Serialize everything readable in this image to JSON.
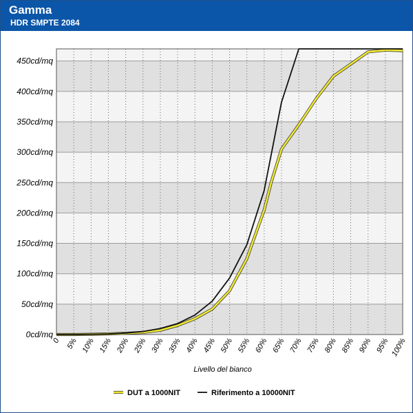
{
  "header": {
    "title": "Gamma",
    "subtitle": "HDR SMPTE 2084"
  },
  "colors": {
    "header_bg": "#0b56a8",
    "band_dark": "#e0e0e0",
    "band_light": "#f4f4f4",
    "dut": "#f0e830",
    "reference": "#111111"
  },
  "chart_data": {
    "type": "line",
    "title": "",
    "xlabel": "Livello del bianco",
    "ylabel": "",
    "x": [
      0,
      5,
      10,
      15,
      20,
      25,
      30,
      35,
      40,
      45,
      50,
      55,
      60,
      65,
      70,
      75,
      80,
      85,
      90,
      95,
      100
    ],
    "x_tick_labels": [
      "0",
      "5%",
      "10%",
      "15%",
      "20%",
      "25%",
      "30%",
      "35%",
      "40%",
      "45%",
      "50%",
      "55%",
      "60%",
      "65%",
      "70%",
      "75%",
      "80%",
      "85%",
      "90%",
      "95%",
      "100%"
    ],
    "y_ticks": [
      0,
      50,
      100,
      150,
      200,
      250,
      300,
      350,
      400,
      450
    ],
    "y_tick_labels": [
      "0cd/mq",
      "50cd/mq",
      "100cd/mq",
      "150cd/mq",
      "200cd/mq",
      "250cd/mq",
      "300cd/mq",
      "350cd/mq",
      "400cd/mq",
      "450cd/mq"
    ],
    "ylim": [
      0,
      470
    ],
    "xlim": [
      0,
      100
    ],
    "grid": true,
    "legend": "bottom",
    "series": [
      {
        "name": "DUT a 1000NIT",
        "x": [
          0,
          5,
          10,
          15,
          20,
          25,
          30,
          35,
          40,
          45,
          50,
          55,
          60,
          62,
          65,
          70,
          75,
          80,
          85,
          90,
          95,
          100
        ],
        "values": [
          0,
          0,
          0.5,
          1,
          2,
          3.5,
          7,
          15,
          26,
          42,
          72,
          125,
          205,
          250,
          305,
          345,
          388,
          425,
          445,
          465,
          468,
          467
        ]
      },
      {
        "name": "Riferimento a 10000NIT",
        "x": [
          0,
          5,
          10,
          15,
          20,
          25,
          30,
          35,
          40,
          45,
          50,
          55,
          60,
          65,
          70,
          75,
          80,
          85,
          90,
          95,
          100
        ],
        "values": [
          0,
          0,
          0.5,
          1,
          2.5,
          5,
          10,
          18,
          32,
          55,
          93,
          148,
          237,
          382,
          470,
          470,
          470,
          470,
          470,
          470,
          470
        ]
      }
    ]
  }
}
